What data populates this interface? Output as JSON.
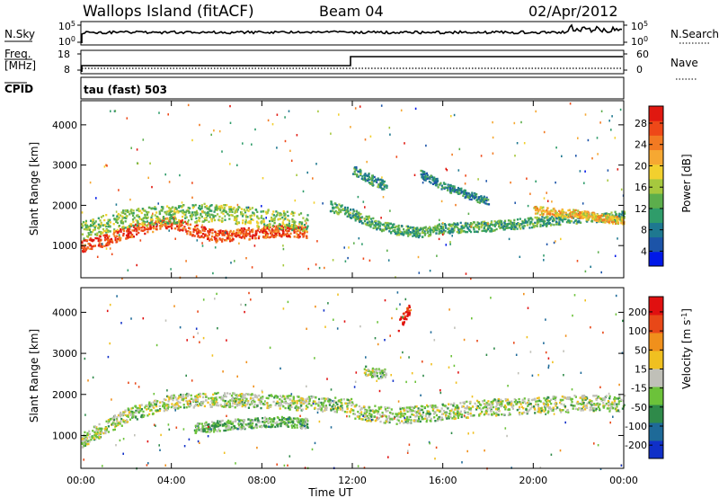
{
  "header": {
    "station": "Wallops Island (fitACF)",
    "beam": "Beam 04",
    "date": "02/Apr/2012"
  },
  "top_panels": {
    "nsky_label": "N.Sky",
    "nsky_ticks": [
      "10^5",
      "10^0"
    ],
    "nsearch_label": "N.Search",
    "nsearch_ticks": [
      "10^5",
      "10^0"
    ],
    "freq_label_1": "Freq.",
    "freq_label_2": "[MHz]",
    "freq_ticks": [
      "18",
      "8"
    ],
    "nave_label": "Nave",
    "nave_ticks": [
      "60",
      "0"
    ],
    "cpid_label": "CPID",
    "cpid_value": "tau (fast) 503"
  },
  "chart_data": [
    {
      "type": "heatmap",
      "name": "power",
      "ylabel": "Slant Range [km]",
      "yticks": [
        "4000",
        "3000",
        "2000",
        "1000"
      ],
      "ylim": [
        200,
        4600
      ],
      "xlim": [
        0,
        24
      ],
      "colorbar": {
        "label": "Power [dB]",
        "ticks": [
          "28",
          "24",
          "20",
          "16",
          "12",
          "8",
          "4"
        ],
        "colors": [
          "#0018e8",
          "#1c54a8",
          "#1e7890",
          "#2f9c6a",
          "#5cae4c",
          "#a6c83e",
          "#f2d02e",
          "#f6a832",
          "#f27a22",
          "#ee4818",
          "#e01810"
        ]
      },
      "bands": [
        {
          "x": [
            0.0,
            1.0,
            2.0,
            3.0,
            4.0,
            5.0,
            6.0,
            7.0,
            8.0,
            9.0,
            10.0
          ],
          "y": [
            1000,
            1150,
            1350,
            1500,
            1600,
            1400,
            1250,
            1300,
            1350,
            1400,
            1350
          ],
          "width": 300,
          "level": 0.9
        },
        {
          "x": [
            0.0,
            2.0,
            4.0,
            6.0,
            8.0,
            10.0
          ],
          "y": [
            1400,
            1700,
            1800,
            1850,
            1700,
            1600
          ],
          "width": 450,
          "level": 0.45
        },
        {
          "x": [
            11.0,
            12.0,
            13.0,
            14.0,
            15.0,
            16.0,
            18.0,
            20.0,
            22.0,
            24.0
          ],
          "y": [
            2000,
            1800,
            1550,
            1400,
            1350,
            1450,
            1500,
            1600,
            1700,
            1750
          ],
          "width": 250,
          "level": 0.35
        },
        {
          "x": [
            20.0,
            21.0,
            22.0,
            23.0,
            24.0
          ],
          "y": [
            1900,
            1850,
            1800,
            1700,
            1650
          ],
          "width": 200,
          "level": 0.65
        },
        {
          "x": [
            12.0,
            12.5,
            13.0,
            13.5
          ],
          "y": [
            2900,
            2750,
            2600,
            2500
          ],
          "width": 250,
          "level": 0.3
        },
        {
          "x": [
            15.0,
            16.0,
            17.0,
            18.0
          ],
          "y": [
            2800,
            2500,
            2300,
            2100
          ],
          "width": 200,
          "level": 0.25
        }
      ]
    },
    {
      "type": "heatmap",
      "name": "velocity",
      "xlabel": "Time UT",
      "ylabel": "Slant Range [km]",
      "xticks": [
        "00:00",
        "04:00",
        "08:00",
        "12:00",
        "16:00",
        "20:00",
        "00:00"
      ],
      "yticks": [
        "4000",
        "3000",
        "2000",
        "1000"
      ],
      "ylim": [
        200,
        4600
      ],
      "xlim": [
        0,
        24
      ],
      "colorbar": {
        "label": "Velocity [m s^-1]",
        "ticks": [
          "200",
          "100",
          "50",
          "15",
          "-15",
          "-50",
          "-100",
          "-200"
        ],
        "colors": [
          "#1030c8",
          "#1e6a98",
          "#2f8a4a",
          "#6cc23a",
          "#c0c0b8",
          "#f0c020",
          "#f0901c",
          "#e84818",
          "#e01010"
        ]
      },
      "bands": [
        {
          "x": [
            0.0,
            1.0,
            2.0,
            3.0,
            4.0,
            6.0,
            8.0,
            10.0,
            12.0
          ],
          "y": [
            900,
            1200,
            1500,
            1700,
            1850,
            1900,
            1850,
            1800,
            1750
          ],
          "width": 350,
          "level": 0.45
        },
        {
          "x": [
            12.0,
            14.0,
            16.0,
            18.0,
            20.0,
            22.0,
            24.0
          ],
          "y": [
            1600,
            1500,
            1600,
            1700,
            1750,
            1800,
            1800
          ],
          "width": 400,
          "level": 0.45
        },
        {
          "x": [
            5.0,
            6.0,
            7.0,
            8.0,
            9.0,
            10.0
          ],
          "y": [
            1200,
            1250,
            1300,
            1350,
            1350,
            1300
          ],
          "width": 250,
          "level": 0.35
        },
        {
          "x": [
            12.5,
            13.0,
            13.5
          ],
          "y": [
            2600,
            2550,
            2500
          ],
          "width": 250,
          "level": 0.45
        },
        {
          "x": [
            14.0,
            14.5
          ],
          "y": [
            3700,
            4100
          ],
          "width": 300,
          "level": 0.97
        }
      ]
    }
  ]
}
